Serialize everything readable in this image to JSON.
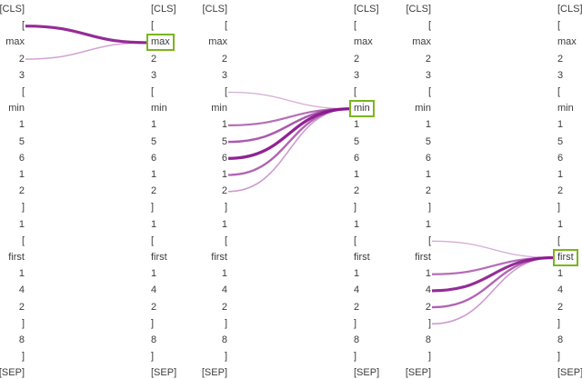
{
  "panels": [
    {
      "left_tokens": [
        "[CLS]",
        "[",
        "max",
        "2",
        "3",
        "[",
        "min",
        "1",
        "5",
        "6",
        "1",
        "2",
        "]",
        "1",
        "[",
        "first",
        "1",
        "4",
        "2",
        "]",
        "8",
        "]",
        "[SEP]"
      ],
      "right_tokens": [
        "[CLS]",
        "[",
        "max",
        "2",
        "3",
        "[",
        "min",
        "1",
        "5",
        "6",
        "1",
        "2",
        "]",
        "1",
        "[",
        "first",
        "1",
        "4",
        "2",
        "]",
        "8",
        "]",
        "[SEP]"
      ],
      "highlight_index": 2,
      "links": [
        {
          "from": 1,
          "weight": 0.9
        },
        {
          "from": 3,
          "weight": 0.25
        }
      ]
    },
    {
      "left_tokens": [
        "[CLS]",
        "[",
        "max",
        "2",
        "3",
        "[",
        "min",
        "1",
        "5",
        "6",
        "1",
        "2",
        "]",
        "1",
        "[",
        "first",
        "1",
        "4",
        "2",
        "]",
        "8",
        "]",
        "[SEP]"
      ],
      "right_tokens": [
        "[CLS]",
        "[",
        "max",
        "2",
        "3",
        "[",
        "min",
        "1",
        "5",
        "6",
        "1",
        "2",
        "]",
        "1",
        "[",
        "first",
        "1",
        "4",
        "2",
        "]",
        "8",
        "]",
        "[SEP]"
      ],
      "highlight_index": 6,
      "links": [
        {
          "from": 5,
          "weight": 0.2
        },
        {
          "from": 7,
          "weight": 0.55
        },
        {
          "from": 8,
          "weight": 0.65
        },
        {
          "from": 9,
          "weight": 0.95
        },
        {
          "from": 10,
          "weight": 0.6
        },
        {
          "from": 11,
          "weight": 0.3
        }
      ]
    },
    {
      "left_tokens": [
        "[CLS]",
        "[",
        "max",
        "2",
        "3",
        "[",
        "min",
        "1",
        "5",
        "6",
        "1",
        "2",
        "]",
        "1",
        "[",
        "first",
        "1",
        "4",
        "2",
        "]",
        "8",
        "]",
        "[SEP]"
      ],
      "right_tokens": [
        "[CLS]",
        "[",
        "max",
        "2",
        "3",
        "[",
        "min",
        "1",
        "5",
        "6",
        "1",
        "2",
        "]",
        "1",
        "[",
        "first",
        "1",
        "4",
        "2",
        "]",
        "8",
        "]",
        "[SEP]"
      ],
      "highlight_index": 15,
      "links": [
        {
          "from": 14,
          "weight": 0.2
        },
        {
          "from": 16,
          "weight": 0.55
        },
        {
          "from": 17,
          "weight": 0.9
        },
        {
          "from": 18,
          "weight": 0.6
        },
        {
          "from": 19,
          "weight": 0.3
        }
      ]
    }
  ],
  "colors": {
    "link": "#8b1a8f",
    "highlight_border": "#7ab51d",
    "text": "#3b3b3b"
  }
}
